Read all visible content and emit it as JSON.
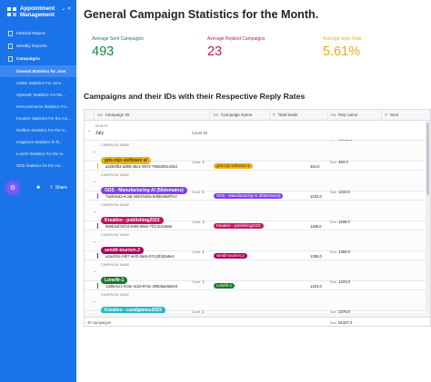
{
  "sidebar": {
    "title": "Appointment Management",
    "chevron": "⌄",
    "collapse": "«",
    "items": [
      {
        "label": "Internal Report",
        "icon": "doc-icon"
      },
      {
        "label": "Weekly Reports",
        "icon": "doc-icon"
      },
      {
        "label": "Campaigns",
        "icon": "doc-icon"
      }
    ],
    "campaign_items": [
      {
        "label": "General Statistics for June",
        "active": true
      },
      {
        "label": "Uetlee Statistics For June ..."
      },
      {
        "label": "Stylewdz Statistics For the..."
      },
      {
        "label": "Kreecommerce Statistics For..."
      },
      {
        "label": "Kreative Statistics For the mo..."
      },
      {
        "label": "Redbee Statistics For the m..."
      },
      {
        "label": "Imagment Statistics fir th..."
      },
      {
        "label": "Lonefir Statistics For the m..."
      },
      {
        "label": "GDS Statistics for the mo..."
      }
    ],
    "share_label": "Share"
  },
  "header": {
    "title": "General Campaign Statistics for the Month."
  },
  "stats": [
    {
      "label": "Average Sent Campaigns",
      "value": "493",
      "color": "#0f8a3c"
    },
    {
      "label": "Average Replied Campaigns",
      "value": "23",
      "color": "#c2185b"
    },
    {
      "label": "Average reply Rate",
      "value": "5.61%",
      "color": "#f2a91c"
    }
  ],
  "table": {
    "section_title": "Campaigns and their IDs with their Respective Reply Rates",
    "columns": [
      "Campaign ID",
      "Campaign Name",
      "Total leads",
      "Rep name",
      "Sent"
    ],
    "month_label": "MONTH",
    "month_value": "July",
    "month_count": "Count 30",
    "month_sum": "81347.0",
    "group_label": "CAMPAIGN NAME",
    "sum_label": "Sum",
    "count_label": "Count",
    "groups": [
      {
        "name": "gds-mjc-software ai",
        "color": "#e8b416",
        "text_color": "#5a3b00",
        "count": "1",
        "sum": "464.0",
        "row_id": "a42b0fb3-dd85-45e1-9072-7962d0013cbd",
        "row_sum": "464.0",
        "bar": "#e8b416"
      },
      {
        "name": "GDS - Manufacturing AI (50domains)",
        "color": "#7e3ff2",
        "text_color": "#ffffff",
        "count": "1",
        "sum": "1233.0",
        "row_id": "7aeb6a43-eca5-426d-b83a-9d5b28a9f7e2",
        "row_sum": "1233.0",
        "bar": "#7e3ff2"
      },
      {
        "name": "Kreative - publishing2023",
        "color": "#c2185b",
        "text_color": "#ffffff",
        "count": "1",
        "sum": "1186.0",
        "row_id": "866b3af-bd7d-4e95-99ee-7f213c4e5a9",
        "row_sum": "1186.0",
        "bar": "#c2185b"
      },
      {
        "name": "sendit-tourism.3",
        "color": "#b0005f",
        "text_color": "#ffffff",
        "count": "1",
        "sum": "1355.0",
        "row_id": "a2acf40c-bf87-4ef3-8ac6-07c12b32a5e4",
        "row_sum": "1355.0",
        "bar": "#b0005f"
      },
      {
        "name": "Lonefir-1",
        "color": "#1b7a2e",
        "text_color": "#ffffff",
        "count": "1",
        "sum": "1223.0",
        "row_id": "13d5e1e1-0cbe-4c33-97ac-2650dae8a0c5",
        "row_sum": "1223.0",
        "bar": "#1b7a2e"
      },
      {
        "name": "Kreative - candgames2023",
        "color": "#26b8c9",
        "text_color": "#ffffff",
        "count": "1",
        "sum": "2378.0",
        "row_id": "d0b16406-ee9a-4c46-8f68-71d0853ca0e8",
        "row_sum": "2378.0",
        "bar": "#26b8c9"
      }
    ],
    "footer_sum": "81347.0",
    "footer_count": "30 campaigns"
  }
}
